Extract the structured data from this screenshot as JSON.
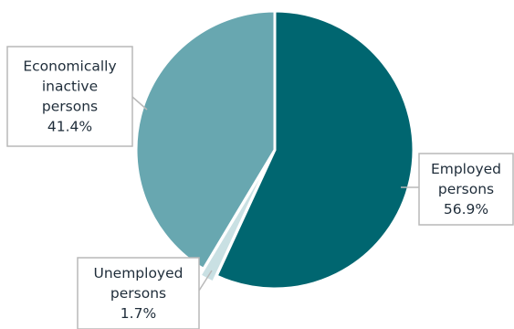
{
  "chart_data": {
    "type": "pie",
    "title": "",
    "slices": [
      {
        "name": "Employed persons",
        "label_lines": [
          "Employed",
          "persons"
        ],
        "value": 56.9,
        "value_label": "56.9%",
        "color": "#006670"
      },
      {
        "name": "Unemployed persons",
        "label_lines": [
          "Unemployed",
          "persons"
        ],
        "value": 1.7,
        "value_label": "1.7%",
        "color": "#c9e0e3"
      },
      {
        "name": "Economically inactive persons",
        "label_lines": [
          "Economically",
          "inactive",
          "persons"
        ],
        "value": 41.4,
        "value_label": "41.4%",
        "color": "#68a7b0"
      }
    ],
    "start_angle_deg": 0,
    "direction": "clockwise",
    "legend": "none",
    "data_labels": "callouts"
  }
}
